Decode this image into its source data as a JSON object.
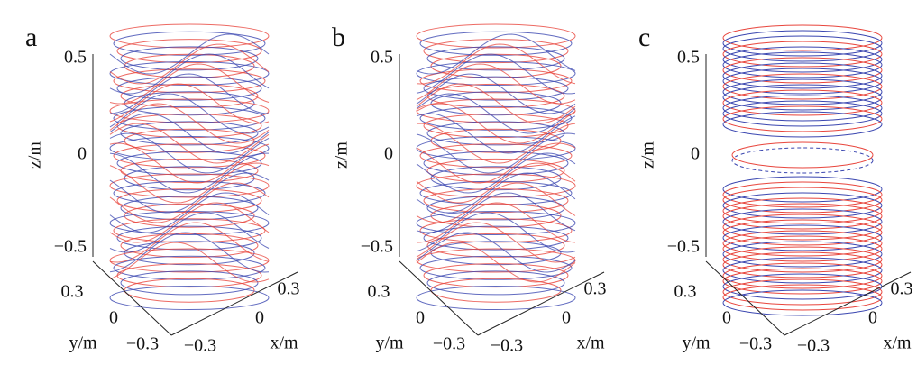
{
  "panels": [
    {
      "label": "a",
      "zlabel": "z/m",
      "zticks": [
        "0.5",
        "0",
        "−0.5"
      ],
      "ylabel": "y/m",
      "yticks": [
        "0.3",
        "0",
        "−0.3"
      ],
      "xlabel": "x/m",
      "xticks": [
        "−0.3",
        "0",
        "0.3"
      ]
    },
    {
      "label": "b",
      "zlabel": "z/m",
      "zticks": [
        "0.5",
        "0",
        "−0.5"
      ],
      "ylabel": "y/m",
      "yticks": [
        "0.3",
        "0",
        "−0.3"
      ],
      "xlabel": "x/m",
      "xticks": [
        "−0.3",
        "0",
        "0.3"
      ]
    },
    {
      "label": "c",
      "zlabel": "z/m",
      "zticks": [
        "0.5",
        "0",
        "−0.5"
      ],
      "ylabel": "y/m",
      "yticks": [
        "0.3",
        "0",
        "−0.3"
      ],
      "xlabel": "x/m",
      "xticks": [
        "−0.3",
        "0",
        "0.3"
      ]
    }
  ]
}
